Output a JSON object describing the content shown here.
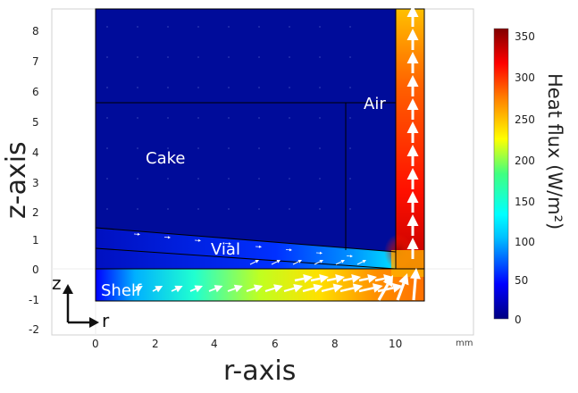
{
  "plot": {
    "x_axis_title": "r-axis",
    "y_axis_title": "z-axis",
    "x_ticks": [
      "0",
      "2",
      "4",
      "6",
      "8",
      "10"
    ],
    "y_ticks": [
      "8",
      "7",
      "6",
      "5",
      "4",
      "3",
      "2",
      "1",
      "0",
      "-1",
      "-2"
    ],
    "unit": "mm"
  },
  "regions": {
    "cake": "Cake",
    "air": "Air",
    "vial": "Vial",
    "shelf": "Shelf"
  },
  "colorbar": {
    "title": "Heat flux (W/m²)",
    "ticks": [
      "350",
      "300",
      "250",
      "200",
      "150",
      "100",
      "50",
      "0"
    ],
    "colors": [
      "#000080",
      "#0000ff",
      "#00c0ff",
      "#00ffff",
      "#40ff80",
      "#ffff00",
      "#ff8000",
      "#ff0000",
      "#800000"
    ]
  },
  "triad": {
    "vertical": "z",
    "horizontal": "r"
  }
}
